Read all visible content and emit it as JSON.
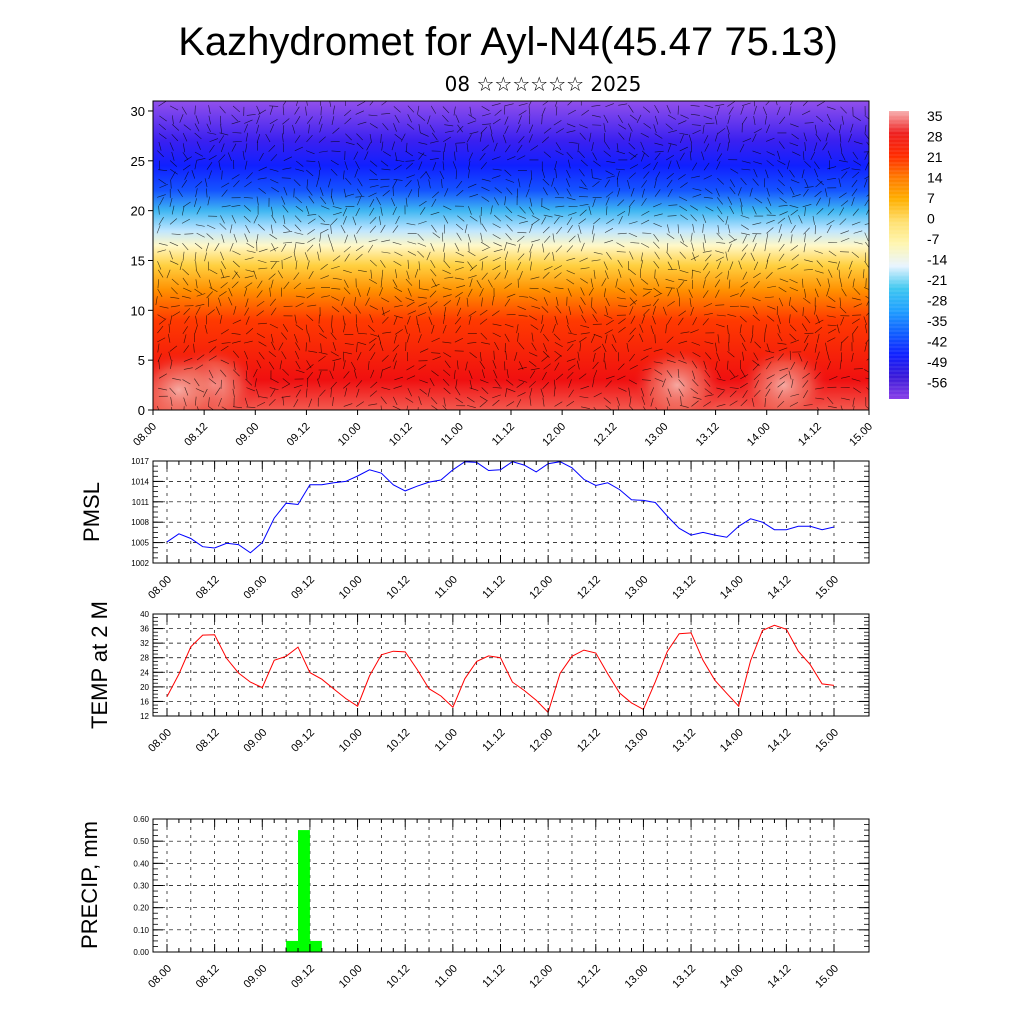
{
  "title": "Kazhydromet for Ayl-N4(45.47 75.13)",
  "subtitle": "08 ☆☆☆☆☆☆ 2025",
  "time_labels": [
    "08.00",
    "08.12",
    "09.00",
    "09.12",
    "10.00",
    "10.12",
    "11.00",
    "11.12",
    "12.00",
    "12.12",
    "13.00",
    "13.12",
    "14.00",
    "14.12",
    "15.00"
  ],
  "chart_data": [
    {
      "type": "heatmap",
      "name": "temperature-wind cross-section",
      "ylim": [
        0,
        31
      ],
      "yticks": [
        0,
        5,
        10,
        15,
        20,
        25,
        30
      ],
      "colorbar": {
        "labels": [
          "35",
          "28",
          "21",
          "14",
          "7",
          "0",
          "-7",
          "-14",
          "-21",
          "-28",
          "-35",
          "-42",
          "-49",
          "-56"
        ],
        "stops": [
          "#f7b0b0",
          "#ee2020",
          "#ff2a00",
          "#ff7a00",
          "#ffb000",
          "#ffe070",
          "#fff6b0",
          "#e8f4ff",
          "#40c8f0",
          "#20a0ff",
          "#1060ff",
          "#1020ff",
          "#3a1ad8",
          "#8a40e8"
        ]
      },
      "bands_by_height": [
        {
          "h": 0,
          "color": "#f35a50"
        },
        {
          "h": 3,
          "color": "#f01010"
        },
        {
          "h": 9,
          "color": "#ff3a00"
        },
        {
          "h": 12,
          "color": "#ff9000"
        },
        {
          "h": 14.5,
          "color": "#ffd040"
        },
        {
          "h": 16.5,
          "color": "#fff8c8"
        },
        {
          "h": 18,
          "color": "#bfe6ff"
        },
        {
          "h": 20,
          "color": "#3fb6f2"
        },
        {
          "h": 22,
          "color": "#1555ff"
        },
        {
          "h": 24.5,
          "color": "#1020ff"
        },
        {
          "h": 27,
          "color": "#3a20f0"
        },
        {
          "h": 31,
          "color": "#9250ec"
        }
      ]
    },
    {
      "type": "line",
      "ylabel": "PMSL",
      "ylim": [
        1002,
        1017
      ],
      "yticks": [
        1002,
        1005,
        1008,
        1011,
        1014,
        1017
      ],
      "color": "#0000ff",
      "x": [
        0,
        3,
        6,
        9,
        12,
        15,
        18,
        21,
        24,
        27,
        30,
        33,
        36,
        39,
        42,
        45,
        48,
        51,
        54,
        57,
        60,
        63,
        66,
        69,
        72,
        75,
        78,
        81,
        84,
        87,
        90,
        93,
        96,
        99,
        102,
        105,
        108,
        111,
        114,
        117,
        120,
        123,
        126,
        129,
        132,
        135,
        138,
        141,
        144,
        147,
        150,
        153,
        156,
        159,
        162,
        165,
        168
      ],
      "values": [
        1005.1,
        1006.3,
        1005.6,
        1004.4,
        1004.2,
        1004.9,
        1004.7,
        1003.5,
        1005.0,
        1008.6,
        1010.8,
        1010.6,
        1013.5,
        1013.5,
        1013.8,
        1014.0,
        1014.8,
        1015.7,
        1015.2,
        1013.5,
        1012.6,
        1013.3,
        1013.9,
        1014.2,
        1015.7,
        1016.9,
        1016.8,
        1015.6,
        1015.7,
        1016.9,
        1016.4,
        1015.4,
        1016.6,
        1016.9,
        1016.0,
        1014.3,
        1013.4,
        1013.8,
        1012.8,
        1011.3,
        1011.2,
        1010.9,
        1008.9,
        1007.1,
        1006.1,
        1006.5,
        1006.1,
        1005.8,
        1007.4,
        1008.5,
        1008.0,
        1006.9,
        1006.9,
        1007.4,
        1007.4,
        1006.9,
        1007.3
      ]
    },
    {
      "type": "line",
      "ylabel": "TEMP at 2 M",
      "ylim": [
        12,
        40
      ],
      "yticks": [
        12,
        16,
        20,
        24,
        28,
        32,
        36,
        40
      ],
      "color": "#ff0000",
      "x": [
        0,
        3,
        6,
        9,
        12,
        15,
        18,
        21,
        24,
        27,
        30,
        33,
        36,
        39,
        42,
        45,
        48,
        51,
        54,
        57,
        60,
        63,
        66,
        69,
        72,
        75,
        78,
        81,
        84,
        87,
        90,
        93,
        96,
        99,
        102,
        105,
        108,
        111,
        114,
        117,
        120,
        123,
        126,
        129,
        132,
        135,
        138,
        141,
        144,
        147,
        150,
        153,
        156,
        159,
        162,
        165,
        168
      ],
      "values": [
        17.3,
        23.5,
        31.0,
        34.2,
        34.3,
        27.8,
        23.8,
        21.3,
        19.8,
        27.3,
        28.4,
        30.9,
        23.9,
        22.1,
        19.4,
        16.8,
        14.7,
        23.0,
        28.8,
        29.8,
        29.6,
        24.8,
        19.5,
        17.5,
        14.4,
        22.2,
        27.0,
        28.5,
        28.0,
        21.3,
        19.0,
        16.3,
        13.0,
        23.7,
        28.4,
        30.1,
        29.3,
        23.6,
        18.3,
        15.6,
        13.8,
        21.4,
        29.7,
        34.6,
        34.8,
        27.3,
        21.8,
        18.2,
        14.7,
        27.2,
        35.5,
        36.9,
        35.8,
        29.8,
        26.1,
        20.8,
        20.4
      ]
    },
    {
      "type": "bar",
      "ylabel": "PRECIP, mm",
      "ylim": [
        0,
        0.6
      ],
      "yticks": [
        "0.00",
        "0.10",
        "0.20",
        "0.30",
        "0.40",
        "0.50",
        "0.60"
      ],
      "color": "#00ff00",
      "bars": [
        {
          "x_start": 30,
          "x_end": 33,
          "value": 0.05
        },
        {
          "x_start": 33,
          "x_end": 36,
          "value": 0.55
        },
        {
          "x_start": 36,
          "x_end": 39,
          "value": 0.05
        }
      ]
    }
  ]
}
